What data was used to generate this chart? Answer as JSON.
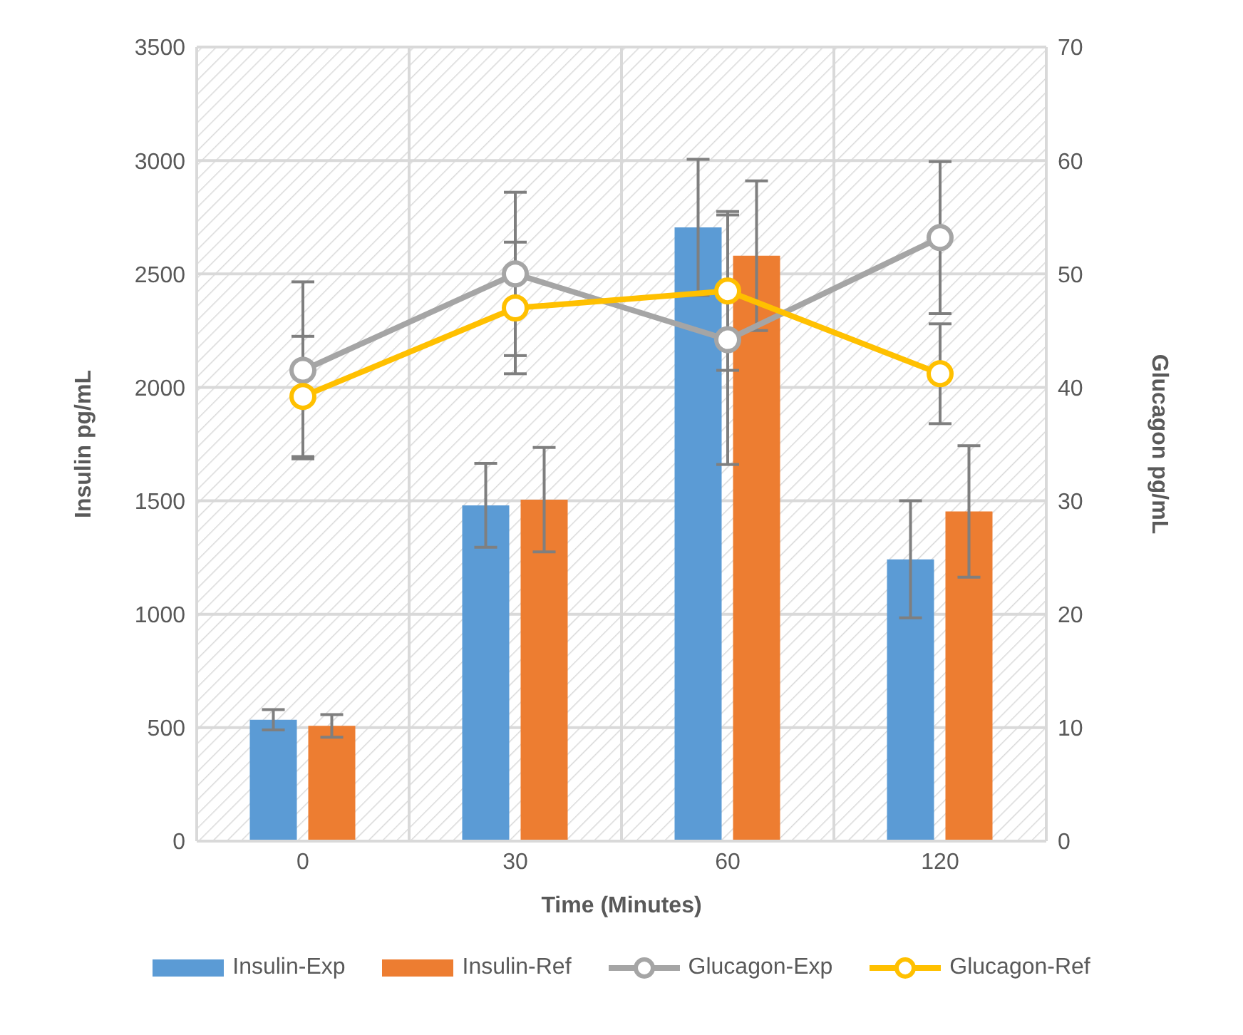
{
  "chart_data": {
    "type": "bar",
    "categories": [
      "0",
      "30",
      "60",
      "120"
    ],
    "xlabel": "Time (Minutes)",
    "ylabel": "Insulin pg/mL",
    "y2label": "Glucagon pg/mL",
    "ylim": [
      0,
      3500
    ],
    "yticks": [
      0,
      500,
      1000,
      1500,
      2000,
      2500,
      3000,
      3500
    ],
    "y2lim": [
      0,
      70
    ],
    "y2ticks": [
      0,
      10,
      20,
      30,
      40,
      50,
      60,
      70
    ],
    "grid": true,
    "legend": "bottom",
    "marker": "circle",
    "series": [
      {
        "name": "Insulin-Exp",
        "color": "#5b9bd5",
        "values": [
          535,
          1480,
          2705,
          1242
        ],
        "errors": [
          45,
          185,
          300,
          258
        ]
      },
      {
        "name": "Insulin-Ref",
        "color": "#ed7d31",
        "values": [
          508,
          1505,
          2580,
          1453
        ],
        "errors": [
          50,
          230,
          330,
          290
        ]
      },
      {
        "name": "Glucagon-Exp",
        "type": "line",
        "axis": "y2",
        "color": "#a5a5a5",
        "values": [
          41.5,
          50,
          44.2,
          53.2
        ],
        "errors": [
          7.8,
          7.2,
          11,
          6.7
        ]
      },
      {
        "name": "Glucagon-Ref",
        "type": "line",
        "axis": "y2",
        "color": "#ffc000",
        "values": [
          39.2,
          47,
          48.5,
          41.2
        ],
        "errors": [
          5.3,
          5.8,
          7,
          4.4
        ]
      }
    ]
  }
}
